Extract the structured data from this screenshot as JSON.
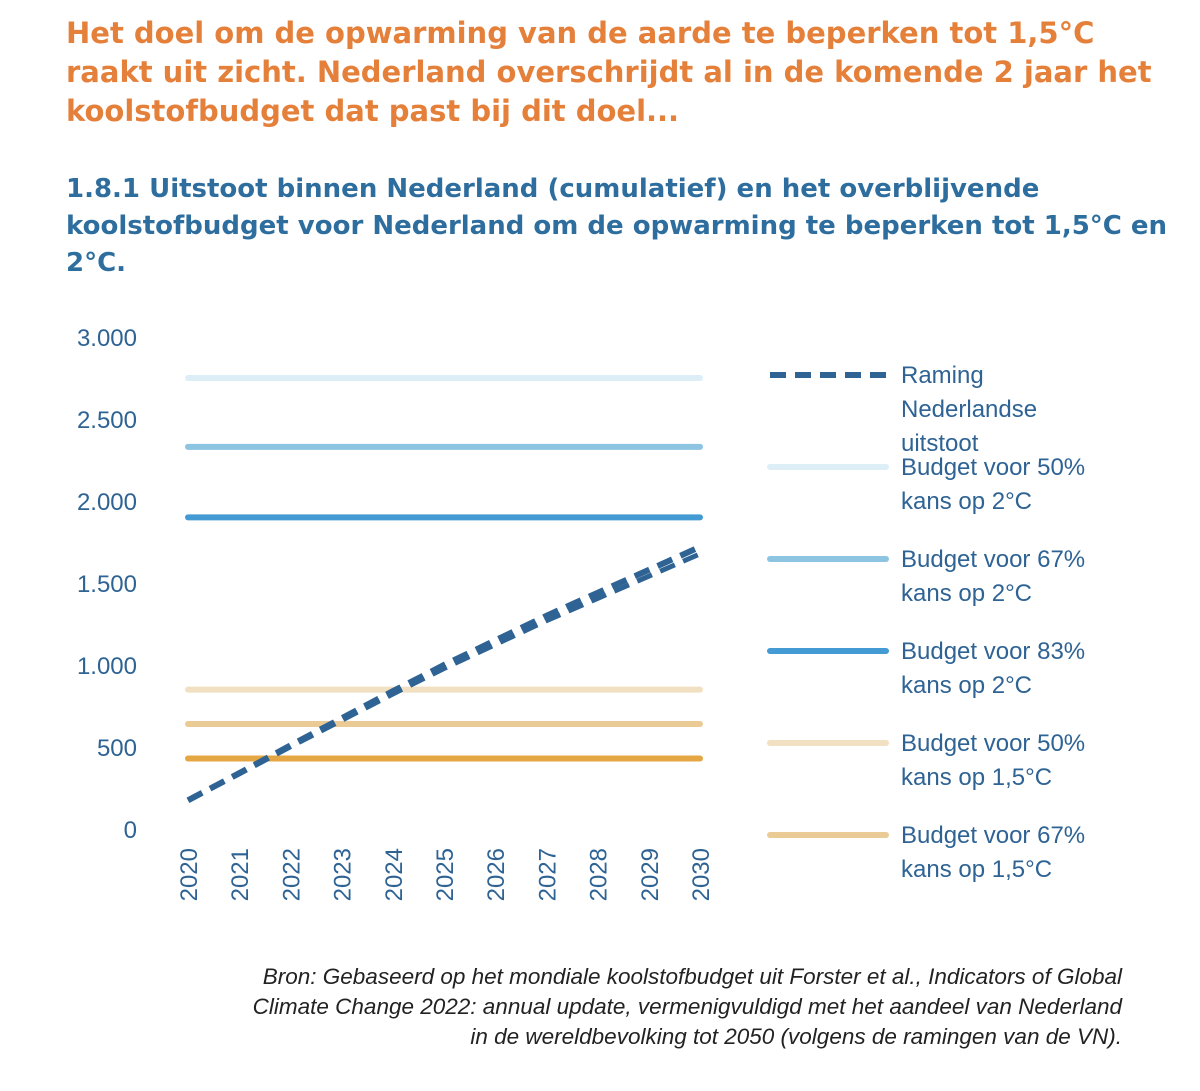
{
  "headline": "Het doel om de opwarming van de aarde te beperken tot 1,5°C raakt uit zicht. Nederland overschrijdt al in de komende 2 jaar het koolstofbudget dat past bij dit doel...",
  "chart_data": {
    "type": "line",
    "title": "1.8.1 Uitstoot binnen Nederland (cumulatief) en het overblijvende koolstofbudget voor Nederland om de opwarming te beperken tot 1,5°C en 2°C.",
    "xlabel": "",
    "ylabel": "",
    "x": [
      2020,
      2021,
      2022,
      2023,
      2024,
      2025,
      2026,
      2027,
      2028,
      2029,
      2030
    ],
    "x_tick_labels": [
      "2020",
      "2021",
      "2022",
      "2023",
      "2024",
      "2025",
      "2026",
      "2027",
      "2028",
      "2029",
      "2030"
    ],
    "ylim": [
      0,
      3000
    ],
    "y_ticks": [
      0,
      500,
      1000,
      1500,
      2000,
      2500,
      3000
    ],
    "y_tick_labels": [
      "0",
      "500",
      "1.000",
      "1.500",
      "2.000",
      "2.500",
      "3.000"
    ],
    "grid": false,
    "legend_position": "right",
    "series": [
      {
        "name": "Raming Nederlandse uitstoot",
        "legend_lines": [
          "Raming",
          "Nederlandse",
          "uitstoot"
        ],
        "style": "dashed",
        "color": "#2E6394",
        "values": [
          175,
          340,
          510,
          675,
          840,
          1000,
          1150,
          1300,
          1440,
          1580,
          1720
        ]
      },
      {
        "name": "Budget voor 50% kans op 2°C",
        "legend_lines": [
          "Budget voor 50%",
          "kans op 2°C"
        ],
        "style": "solid",
        "color": "#DDEEF7",
        "values": [
          2750,
          2750,
          2750,
          2750,
          2750,
          2750,
          2750,
          2750,
          2750,
          2750,
          2750
        ]
      },
      {
        "name": "Budget voor 67% kans op 2°C",
        "legend_lines": [
          "Budget voor 67%",
          "kans op 2°C"
        ],
        "style": "solid",
        "color": "#8CC4E2",
        "values": [
          2330,
          2330,
          2330,
          2330,
          2330,
          2330,
          2330,
          2330,
          2330,
          2330,
          2330
        ]
      },
      {
        "name": "Budget voor 83% kans op 2°C",
        "legend_lines": [
          "Budget voor 83%",
          "kans op 2°C"
        ],
        "style": "solid",
        "color": "#449BD3",
        "values": [
          1900,
          1900,
          1900,
          1900,
          1900,
          1900,
          1900,
          1900,
          1900,
          1900,
          1900
        ]
      },
      {
        "name": "Budget voor 50% kans op 1,5°C",
        "legend_lines": [
          "Budget voor 50%",
          "kans op 1,5°C"
        ],
        "style": "solid",
        "color": "#F2E0C2",
        "values": [
          850,
          850,
          850,
          850,
          850,
          850,
          850,
          850,
          850,
          850,
          850
        ]
      },
      {
        "name": "Budget voor 67% kans op 1,5°C",
        "legend_lines": [
          "Budget voor 67%",
          "kans op 1,5°C"
        ],
        "style": "solid",
        "color": "#EACB95",
        "values": [
          640,
          640,
          640,
          640,
          640,
          640,
          640,
          640,
          640,
          640,
          640
        ]
      },
      {
        "name": "",
        "legend_lines": [],
        "style": "solid",
        "color": "#E4A743",
        "values": [
          430,
          430,
          430,
          430,
          430,
          430,
          430,
          430,
          430,
          430,
          430
        ]
      }
    ]
  },
  "source_lines": [
    "Bron: Gebaseerd op het mondiale koolstofbudget uit Forster et al., Indicators of Global",
    "Climate Change 2022: annual update, vermenigvuldigd met het aandeel van Nederland",
    "in de wereldbevolking tot 2050 (volgens de ramingen van de VN)."
  ]
}
